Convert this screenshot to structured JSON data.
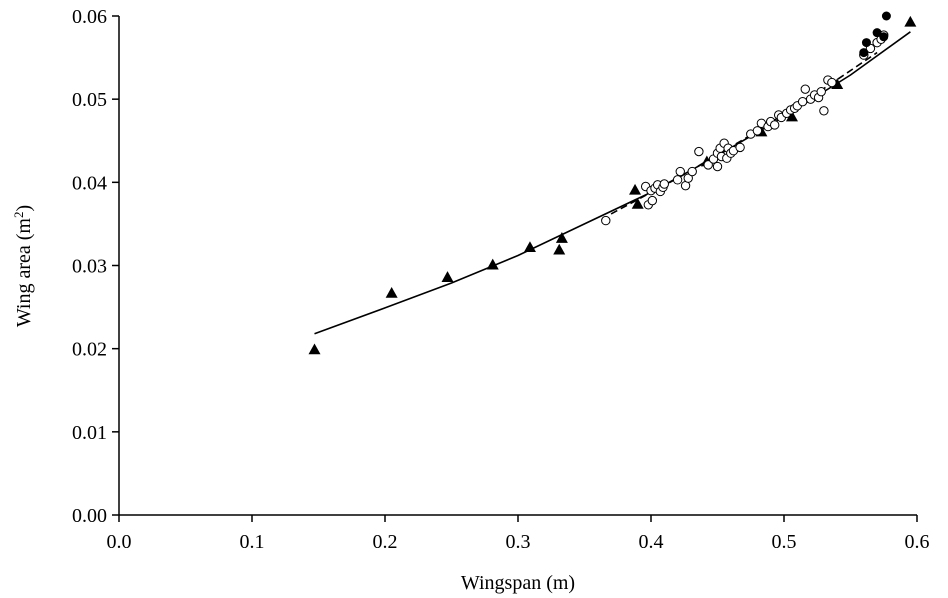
{
  "chart_data": {
    "type": "scatter",
    "title": "",
    "xlabel": "Wingspan (m)",
    "ylabel_main": "Wing area (m",
    "ylabel_sup": "2",
    "ylabel_end": ")",
    "xlim": [
      0.0,
      0.6
    ],
    "ylim": [
      0.0,
      0.06
    ],
    "x_ticks": [
      "0.0",
      "0.1",
      "0.2",
      "0.3",
      "0.4",
      "0.5",
      "0.6"
    ],
    "y_ticks": [
      "0.00",
      "0.01",
      "0.02",
      "0.03",
      "0.04",
      "0.05",
      "0.06"
    ],
    "grid": false,
    "series": [
      {
        "marker": "triangle-filled",
        "points": [
          [
            0.147,
            0.0199
          ],
          [
            0.205,
            0.0267
          ],
          [
            0.247,
            0.0286
          ],
          [
            0.281,
            0.0301
          ],
          [
            0.309,
            0.0322
          ],
          [
            0.331,
            0.0319
          ],
          [
            0.333,
            0.0333
          ],
          [
            0.388,
            0.0391
          ],
          [
            0.39,
            0.0374
          ],
          [
            0.442,
            0.0425
          ],
          [
            0.483,
            0.0461
          ],
          [
            0.506,
            0.0479
          ],
          [
            0.54,
            0.0518
          ],
          [
            0.595,
            0.0593
          ]
        ]
      },
      {
        "marker": "circle-open",
        "points": [
          [
            0.366,
            0.0354
          ],
          [
            0.396,
            0.0395
          ],
          [
            0.398,
            0.0373
          ],
          [
            0.401,
            0.0378
          ],
          [
            0.4,
            0.039
          ],
          [
            0.403,
            0.0393
          ],
          [
            0.405,
            0.0397
          ],
          [
            0.407,
            0.0389
          ],
          [
            0.409,
            0.0394
          ],
          [
            0.41,
            0.0398
          ],
          [
            0.42,
            0.0403
          ],
          [
            0.422,
            0.0413
          ],
          [
            0.426,
            0.0396
          ],
          [
            0.428,
            0.0405
          ],
          [
            0.431,
            0.0413
          ],
          [
            0.436,
            0.0437
          ],
          [
            0.443,
            0.0421
          ],
          [
            0.447,
            0.0428
          ],
          [
            0.45,
            0.0435
          ],
          [
            0.45,
            0.0419
          ],
          [
            0.452,
            0.0441
          ],
          [
            0.453,
            0.0431
          ],
          [
            0.455,
            0.0447
          ],
          [
            0.457,
            0.0429
          ],
          [
            0.458,
            0.0441
          ],
          [
            0.46,
            0.0435
          ],
          [
            0.462,
            0.0438
          ],
          [
            0.467,
            0.0442
          ],
          [
            0.475,
            0.0458
          ],
          [
            0.48,
            0.0462
          ],
          [
            0.483,
            0.0471
          ],
          [
            0.488,
            0.0467
          ],
          [
            0.49,
            0.0473
          ],
          [
            0.493,
            0.0469
          ],
          [
            0.496,
            0.0481
          ],
          [
            0.498,
            0.0478
          ],
          [
            0.502,
            0.0483
          ],
          [
            0.505,
            0.0487
          ],
          [
            0.508,
            0.0489
          ],
          [
            0.51,
            0.0492
          ],
          [
            0.514,
            0.0497
          ],
          [
            0.516,
            0.0512
          ],
          [
            0.52,
            0.05
          ],
          [
            0.523,
            0.0505
          ],
          [
            0.526,
            0.0502
          ],
          [
            0.528,
            0.0509
          ],
          [
            0.53,
            0.0486
          ],
          [
            0.533,
            0.0523
          ],
          [
            0.536,
            0.052
          ],
          [
            0.56,
            0.0553
          ],
          [
            0.565,
            0.0561
          ],
          [
            0.57,
            0.0568
          ],
          [
            0.573,
            0.0572
          ],
          [
            0.575,
            0.0577
          ]
        ]
      },
      {
        "marker": "circle-filled",
        "points": [
          [
            0.56,
            0.0556
          ],
          [
            0.562,
            0.0568
          ],
          [
            0.57,
            0.058
          ],
          [
            0.575,
            0.0575
          ],
          [
            0.577,
            0.06
          ]
        ]
      }
    ],
    "fit_lines": [
      {
        "style": "solid",
        "points": [
          [
            0.147,
            0.0218
          ],
          [
            0.2,
            0.0249
          ],
          [
            0.25,
            0.0279
          ],
          [
            0.3,
            0.0312
          ],
          [
            0.35,
            0.035
          ],
          [
            0.4,
            0.0388
          ],
          [
            0.45,
            0.0432
          ],
          [
            0.5,
            0.0479
          ],
          [
            0.55,
            0.0529
          ],
          [
            0.595,
            0.0581
          ]
        ]
      },
      {
        "style": "dashed",
        "points": [
          [
            0.37,
            0.0362
          ],
          [
            0.42,
            0.0405
          ],
          [
            0.47,
            0.0452
          ],
          [
            0.52,
            0.0502
          ],
          [
            0.57,
            0.0556
          ]
        ]
      }
    ]
  }
}
